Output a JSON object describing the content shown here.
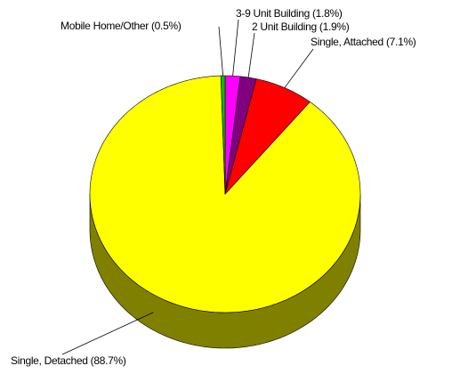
{
  "chart_data": {
    "type": "pie3d",
    "categories": [
      "3-9 Unit Building (1.8%)",
      "2 Unit Building (1.9%)",
      "Single, Attached (7.1%)",
      "Single, Detached (88.7%)",
      "Mobile Home/Other (0.5%)"
    ],
    "values": [
      1.8,
      1.9,
      7.1,
      88.7,
      0.5
    ],
    "colors": [
      "#ff00ff",
      "#800080",
      "#ff0000",
      "#ffff00",
      "#00c000"
    ]
  }
}
